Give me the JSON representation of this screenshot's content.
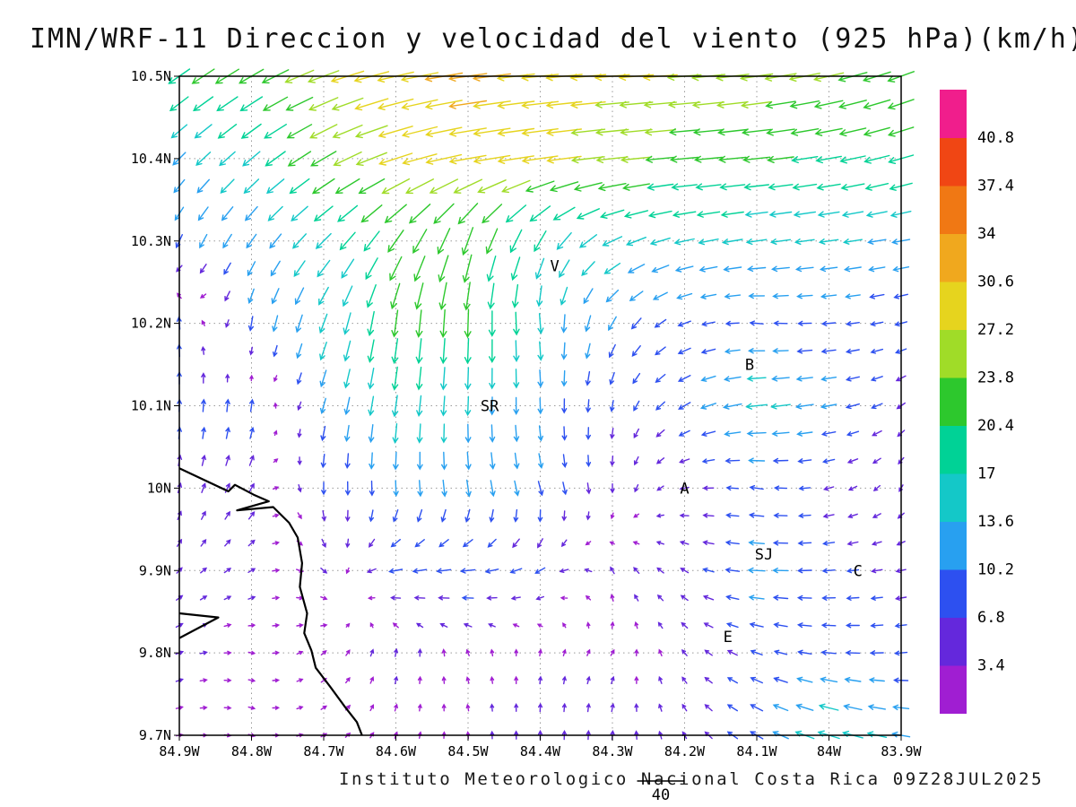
{
  "caption": "Instituto Meteorologico Nacional Costa Rica 09Z28JUL2025",
  "chart_data": {
    "type": "vector_field",
    "title": "IMN/WRF-11 Direccion y velocidad del viento (925 hPa)(km/h)",
    "units": "km/h",
    "level": "925 hPa",
    "xlim": [
      -84.9,
      -83.9
    ],
    "ylim": [
      9.7,
      10.5
    ],
    "grid_style": "dotted",
    "x_ticks": {
      "values": [
        -84.9,
        -84.8,
        -84.7,
        -84.6,
        -84.5,
        -84.4,
        -84.3,
        -84.2,
        -84.1,
        -84.0,
        -83.9
      ],
      "labels": [
        "84.9W",
        "84.8W",
        "84.7W",
        "84.6W",
        "84.5W",
        "84.4W",
        "84.3W",
        "84.2W",
        "84.1W",
        "84W",
        "83.9W"
      ]
    },
    "y_ticks": {
      "values": [
        10.5,
        10.4,
        10.3,
        10.2,
        10.1,
        10.0,
        9.9,
        9.8,
        9.7
      ],
      "labels": [
        "10.5N",
        "10.4N",
        "10.3N",
        "10.2N",
        "10.1N",
        "10N",
        "9.9N",
        "9.8N",
        "9.7N"
      ]
    },
    "colorbar": {
      "interval": 3.4,
      "labels_top_to_bottom": [
        "40.8",
        "37.4",
        "34",
        "30.6",
        "27.2",
        "23.8",
        "20.4",
        "17",
        "13.6",
        "10.2",
        "6.8",
        "3.4"
      ],
      "colors_bottom_to_top": [
        "#A01ED2",
        "#6428DC",
        "#2D50F0",
        "#28A0F0",
        "#14C8C8",
        "#00D296",
        "#2DC82D",
        "#A0DC28",
        "#E6D41E",
        "#F0A81E",
        "#F07814",
        "#F04614",
        "#F01E8C"
      ]
    },
    "reference_vector": {
      "value": 40,
      "label": "40"
    },
    "stations": [
      {
        "label": "V",
        "lon": -84.38,
        "lat": 10.27
      },
      {
        "label": "SR",
        "lon": -84.47,
        "lat": 10.1
      },
      {
        "label": "B",
        "lon": -84.11,
        "lat": 10.15
      },
      {
        "label": "A",
        "lon": -84.2,
        "lat": 10.0
      },
      {
        "label": "SJ",
        "lon": -84.09,
        "lat": 9.92
      },
      {
        "label": "C",
        "lon": -83.96,
        "lat": 9.9
      },
      {
        "label": "E",
        "lon": -84.14,
        "lat": 9.82
      }
    ],
    "coastlines": [
      [
        [
          -84.9,
          10.024
        ],
        [
          -84.832,
          9.996
        ],
        [
          -84.823,
          10.004
        ],
        [
          -84.797,
          9.992
        ],
        [
          -84.776,
          9.984
        ],
        [
          -84.82,
          9.973
        ],
        [
          -84.77,
          9.977
        ],
        [
          -84.748,
          9.958
        ],
        [
          -84.736,
          9.94
        ],
        [
          -84.73,
          9.909
        ],
        [
          -84.733,
          9.88
        ],
        [
          -84.723,
          9.848
        ],
        [
          -84.727,
          9.824
        ],
        [
          -84.717,
          9.803
        ],
        [
          -84.711,
          9.782
        ],
        [
          -84.691,
          9.759
        ],
        [
          -84.671,
          9.735
        ],
        [
          -84.654,
          9.716
        ],
        [
          -84.647,
          9.7
        ]
      ],
      [
        [
          -84.9,
          9.848
        ],
        [
          -84.846,
          9.843
        ],
        [
          -84.9,
          9.818
        ]
      ]
    ],
    "wind_grid": {
      "note": "speed in km/h, dir is pointing direction in degrees (0=E, 90=N, 180=W, 270=S)",
      "lons": [
        -84.9,
        -84.8,
        -84.7,
        -84.6,
        -84.5,
        -84.4,
        -84.3,
        -84.2,
        -84.1,
        -84.0,
        -83.9
      ],
      "lats": [
        10.5,
        10.4,
        10.3,
        10.2,
        10.1,
        10.0,
        9.9,
        9.8,
        9.7
      ],
      "speed_kmh": [
        [
          20,
          22,
          26,
          30,
          31,
          30,
          28,
          27,
          26,
          24,
          22
        ],
        [
          13,
          17,
          23,
          28,
          30,
          29,
          25,
          22,
          21,
          20,
          20
        ],
        [
          10,
          12,
          16,
          21,
          23,
          18,
          16,
          15,
          15,
          14,
          13
        ],
        [
          8,
          10,
          15,
          21,
          22,
          15,
          11,
          9,
          9,
          9,
          8
        ],
        [
          8,
          8,
          11,
          16,
          14,
          11,
          7,
          9,
          16,
          11,
          6
        ],
        [
          6,
          6,
          8,
          11,
          12,
          10,
          5,
          5,
          9,
          6,
          4
        ],
        [
          4,
          4,
          4,
          9,
          10,
          7,
          4,
          5,
          12,
          8,
          6
        ],
        [
          4,
          3,
          3,
          4,
          3,
          3,
          3,
          4,
          8,
          10,
          8
        ],
        [
          3,
          3,
          3,
          3,
          3,
          5,
          5,
          4,
          10,
          17,
          13
        ]
      ],
      "dir_deg_pointing": [
        [
          215,
          210,
          200,
          193,
          188,
          186,
          185,
          185,
          188,
          193,
          200
        ],
        [
          225,
          220,
          210,
          198,
          190,
          188,
          186,
          185,
          186,
          190,
          196
        ],
        [
          245,
          235,
          225,
          235,
          250,
          240,
          205,
          192,
          188,
          188,
          190
        ],
        [
          95,
          260,
          250,
          262,
          268,
          275,
          240,
          200,
          175,
          185,
          195
        ],
        [
          88,
          82,
          255,
          262,
          268,
          272,
          260,
          210,
          186,
          190,
          215
        ],
        [
          75,
          60,
          270,
          272,
          278,
          285,
          270,
          190,
          172,
          195,
          240
        ],
        [
          45,
          30,
          320,
          190,
          186,
          210,
          120,
          150,
          177,
          185,
          192
        ],
        [
          20,
          350,
          40,
          80,
          110,
          80,
          60,
          130,
          160,
          175,
          185
        ],
        [
          10,
          345,
          30,
          70,
          95,
          90,
          85,
          120,
          150,
          163,
          170
        ]
      ]
    }
  },
  "colors": {
    "background": "#ffffff",
    "text": "#000000",
    "grid": "#999999",
    "coast": "#000000"
  }
}
